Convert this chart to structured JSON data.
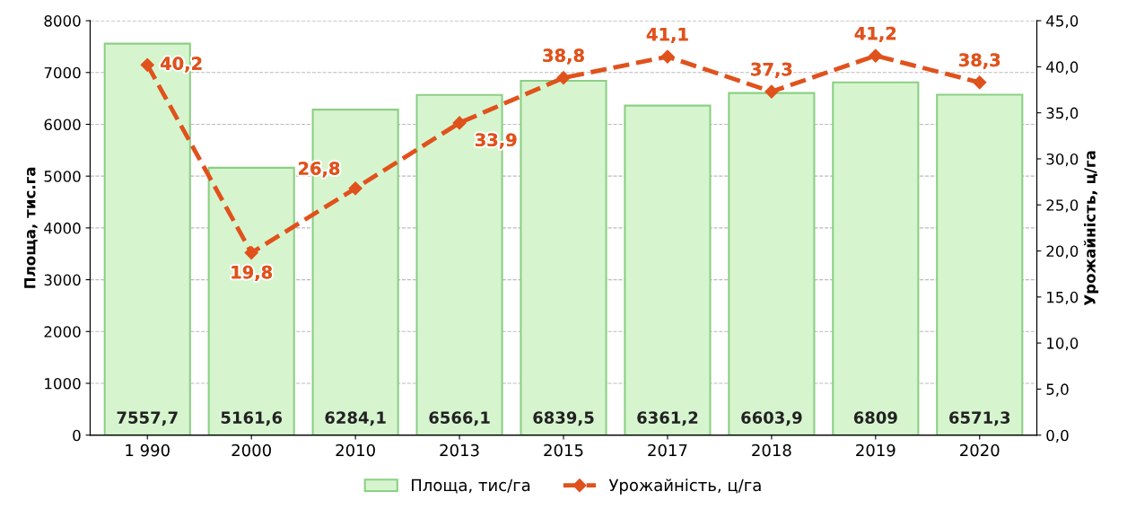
{
  "chart_data": {
    "type": "bar",
    "categories": [
      "1 990",
      "2000",
      "2010",
      "2013",
      "2015",
      "2017",
      "2018",
      "2019",
      "2020"
    ],
    "ylabel": "Площа, тис.га",
    "y2label": "Урожайність, ц/га",
    "series": [
      {
        "name": "Площа, тис/га",
        "color": "#d6f5cf",
        "values": [
          7557.7,
          5161.6,
          6284.1,
          6566.1,
          6839.5,
          6361.2,
          6603.9,
          6809,
          6571.3
        ],
        "value_labels": [
          "7557,7",
          "5161,6",
          "6284,1",
          "6566,1",
          "6839,5",
          "6361,2",
          "6603,9",
          "6809",
          "6571,3"
        ]
      },
      {
        "name": "Урожайність, ц/га",
        "type": "line",
        "axis": "y2",
        "color": "#e0521c",
        "values": [
          40.2,
          19.8,
          26.8,
          33.9,
          38.8,
          41.1,
          37.3,
          41.2,
          38.3
        ],
        "value_labels": [
          "40,2",
          "19,8",
          "26,8",
          "33,9",
          "38,8",
          "41,1",
          "37,3",
          "41,2",
          "38,3"
        ],
        "marker": "diamond",
        "line_style": "dashed"
      }
    ],
    "ylim": [
      0,
      8000
    ],
    "yticks": [
      0,
      1000,
      2000,
      3000,
      4000,
      5000,
      6000,
      7000,
      8000
    ],
    "y2lim": [
      0,
      45
    ],
    "y2ticks": [
      {
        "value": 0,
        "label": "0,0"
      },
      {
        "value": 5,
        "label": "5,0"
      },
      {
        "value": 10,
        "label": "10,0"
      },
      {
        "value": 15,
        "label": "15,0"
      },
      {
        "value": 20,
        "label": "20,0"
      },
      {
        "value": 25,
        "label": "25,0"
      },
      {
        "value": 30,
        "label": "30,0"
      },
      {
        "value": 35,
        "label": "35,0"
      },
      {
        "value": 40,
        "label": "40,0"
      },
      {
        "value": 45,
        "label": "45,0"
      }
    ],
    "grid": "y",
    "legend": "bottom"
  }
}
